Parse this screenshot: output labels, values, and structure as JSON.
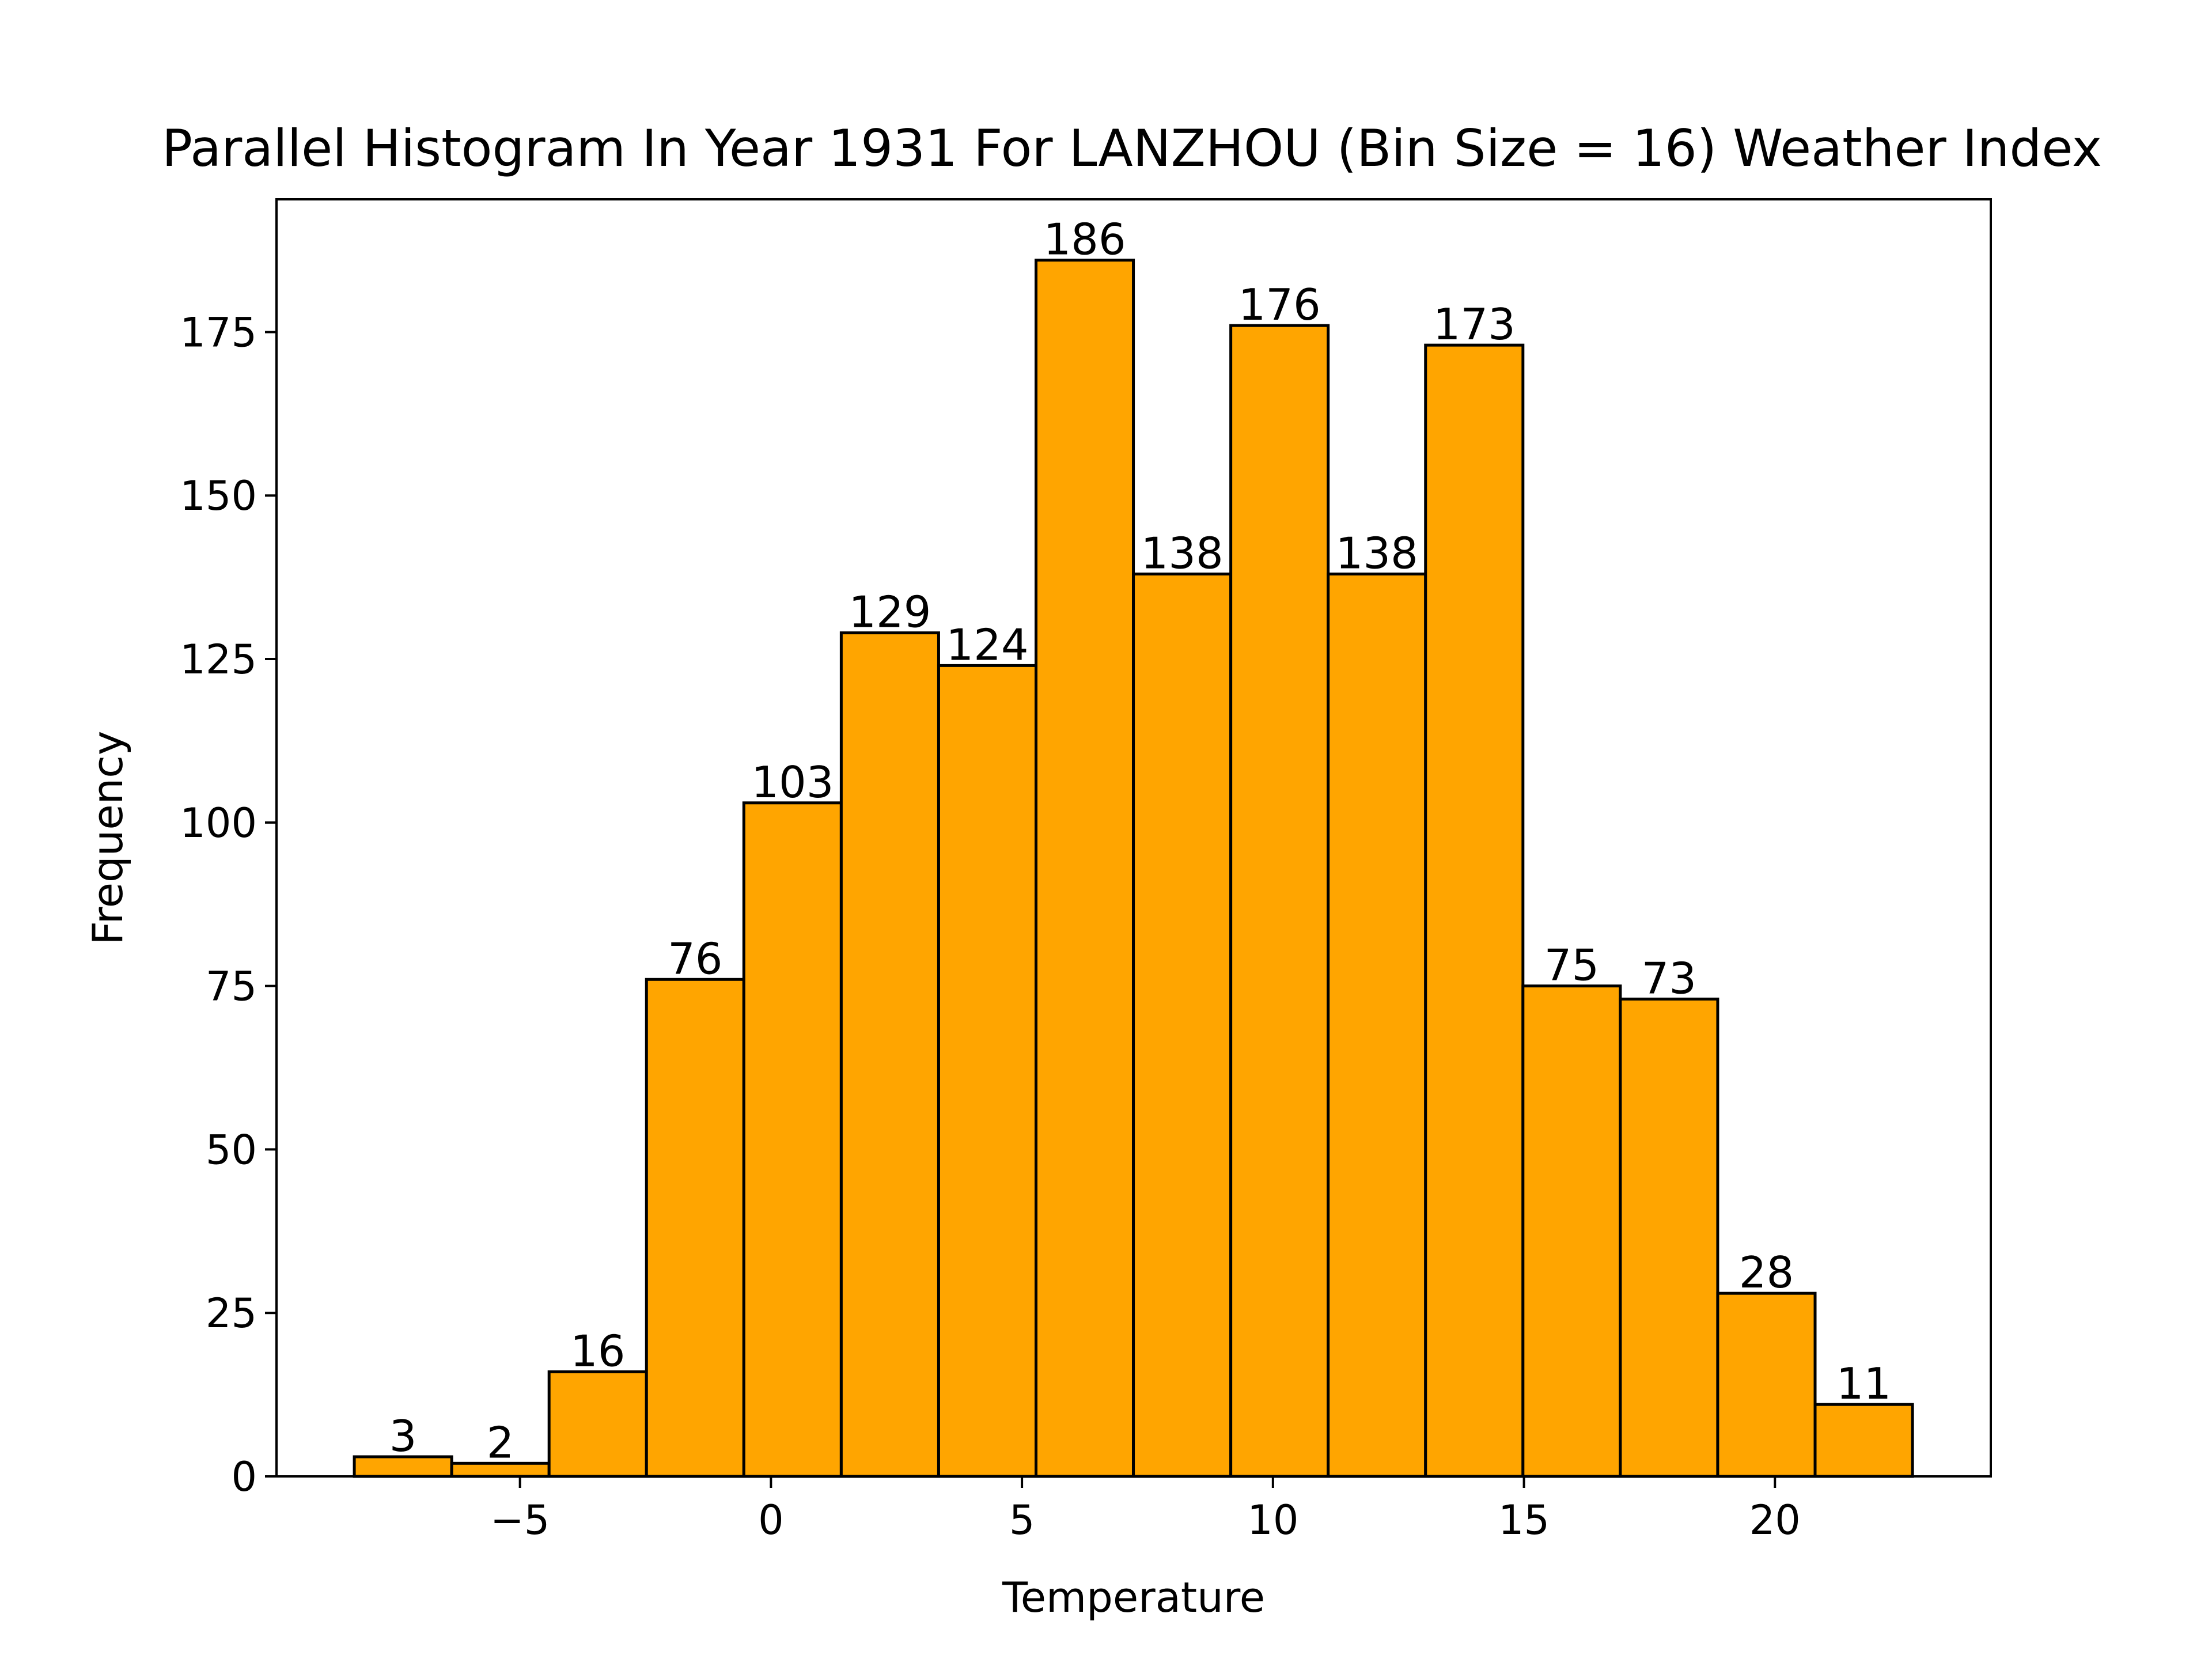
{
  "chart_data": {
    "type": "bar",
    "title": "Parallel Histogram In Year 1931 For LANZHOU (Bin Size = 16) Weather Index",
    "xlabel": "Temperature",
    "ylabel": "Frequency",
    "bins": [
      {
        "start": -8.3,
        "end": -6.36,
        "value": 3
      },
      {
        "start": -6.36,
        "end": -4.42,
        "value": 2
      },
      {
        "start": -4.42,
        "end": -2.48,
        "value": 16
      },
      {
        "start": -2.48,
        "end": -0.54,
        "value": 76
      },
      {
        "start": -0.54,
        "end": 1.4,
        "value": 103
      },
      {
        "start": 1.4,
        "end": 3.34,
        "value": 129
      },
      {
        "start": 3.34,
        "end": 5.28,
        "value": 124
      },
      {
        "start": 5.28,
        "end": 7.22,
        "value": 186
      },
      {
        "start": 7.22,
        "end": 9.16,
        "value": 138
      },
      {
        "start": 9.16,
        "end": 11.1,
        "value": 176
      },
      {
        "start": 11.1,
        "end": 13.04,
        "value": 138
      },
      {
        "start": 13.04,
        "end": 14.98,
        "value": 173
      },
      {
        "start": 14.98,
        "end": 16.92,
        "value": 75
      },
      {
        "start": 16.92,
        "end": 18.86,
        "value": 73
      },
      {
        "start": 18.86,
        "end": 20.8,
        "value": 28
      },
      {
        "start": 20.8,
        "end": 22.74,
        "value": 11
      }
    ],
    "xlim": [
      -9.85,
      24.3
    ],
    "ylim": [
      0,
      195.3
    ],
    "xticks": [
      -5,
      0,
      5,
      10,
      15,
      20
    ],
    "xtick_labels": [
      "−5",
      "0",
      "5",
      "10",
      "15",
      "20"
    ],
    "yticks": [
      0,
      25,
      50,
      75,
      100,
      125,
      150,
      175
    ],
    "ytick_labels": [
      "0",
      "25",
      "50",
      "75",
      "100",
      "125",
      "150",
      "175"
    ],
    "bar_color": "#FFA500",
    "edge_color": "#000000",
    "grid": false,
    "legend": false
  }
}
